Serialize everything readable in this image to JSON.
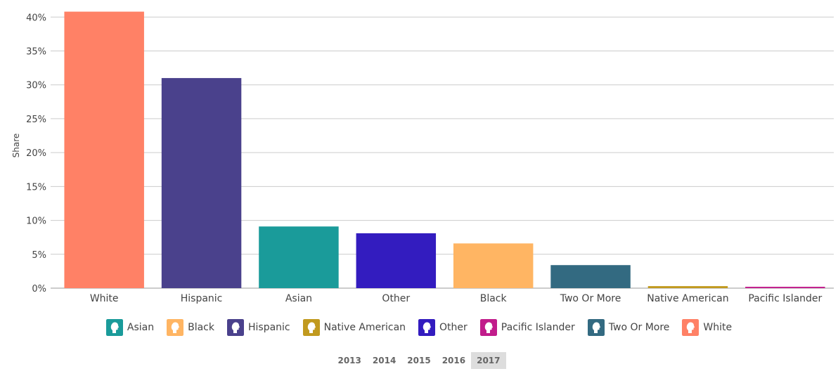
{
  "chart_data": {
    "type": "bar",
    "y_label": "Share",
    "categories": [
      "White",
      "Hispanic",
      "Asian",
      "Other",
      "Black",
      "Two Or More",
      "Native American",
      "Pacific Islander"
    ],
    "values": [
      40.8,
      31.0,
      9.1,
      8.1,
      6.6,
      3.4,
      0.3,
      0.2
    ],
    "colors": [
      "#ff8166",
      "#4a418c",
      "#1a9b9a",
      "#331cbf",
      "#ffb563",
      "#336a81",
      "#c19a1f",
      "#c11c8b"
    ],
    "ylim": [
      0,
      42
    ],
    "yticks": [
      {
        "value": 0,
        "label": "0%"
      },
      {
        "value": 5,
        "label": "5%"
      },
      {
        "value": 10,
        "label": "10%"
      },
      {
        "value": 15,
        "label": "15%"
      },
      {
        "value": 20,
        "label": "20%"
      },
      {
        "value": 25,
        "label": "25%"
      },
      {
        "value": 30,
        "label": "30%"
      },
      {
        "value": 35,
        "label": "35%"
      },
      {
        "value": 40,
        "label": "40%"
      }
    ],
    "grid": true,
    "legend": [
      {
        "name": "Asian",
        "color": "#1a9b9a"
      },
      {
        "name": "Black",
        "color": "#ffb563"
      },
      {
        "name": "Hispanic",
        "color": "#4a418c"
      },
      {
        "name": "Native American",
        "color": "#c19a1f"
      },
      {
        "name": "Other",
        "color": "#331cbf"
      },
      {
        "name": "Pacific Islander",
        "color": "#c11c8b"
      },
      {
        "name": "Two Or More",
        "color": "#336a81"
      },
      {
        "name": "White",
        "color": "#ff8166"
      }
    ],
    "years": [
      "2013",
      "2014",
      "2015",
      "2016",
      "2017"
    ],
    "selected_year": "2017"
  }
}
